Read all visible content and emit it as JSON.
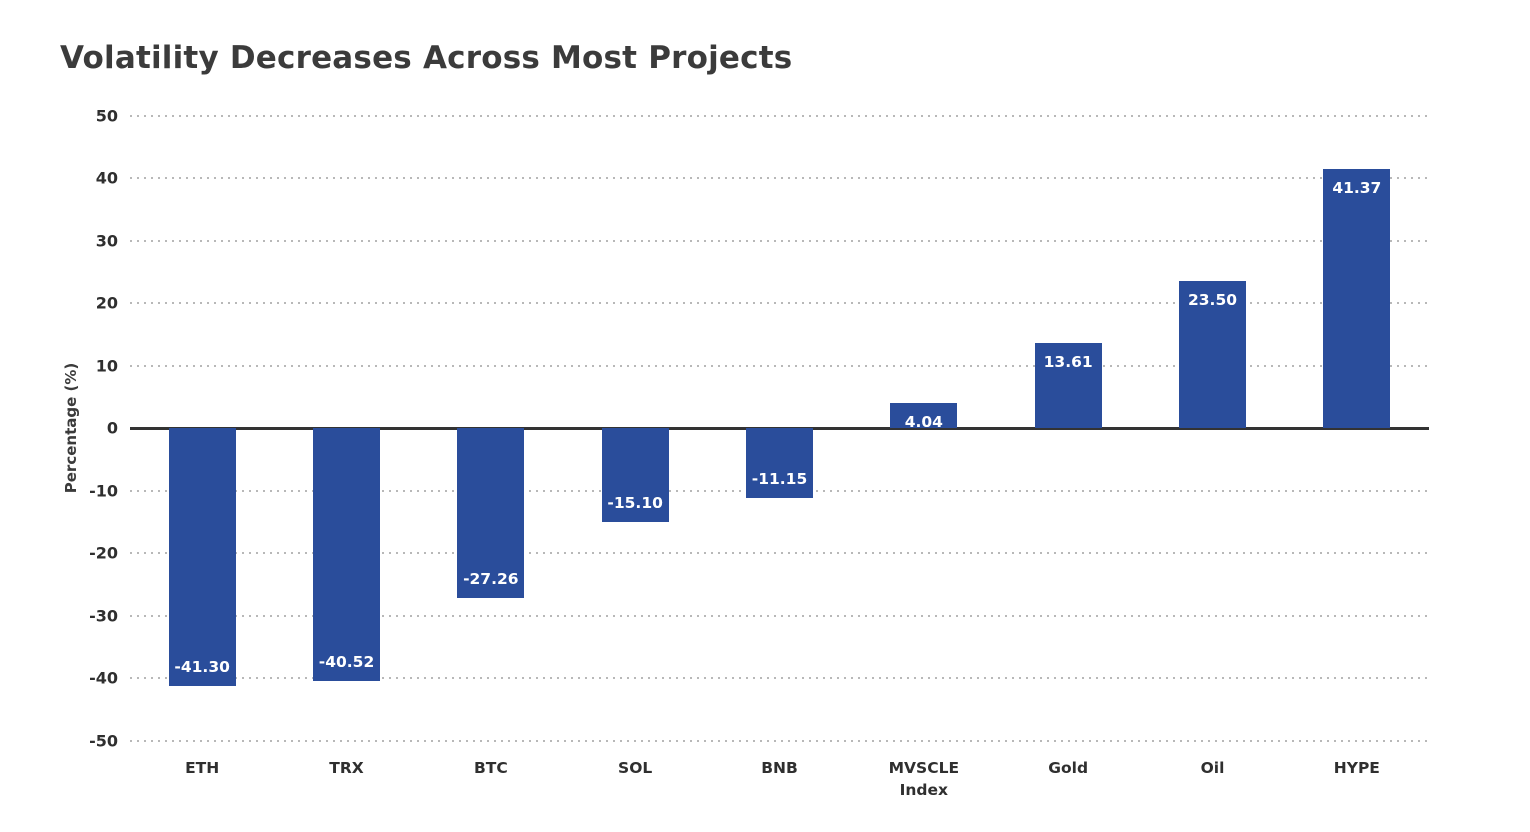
{
  "page": {
    "title": "Volatility Decreases Across Most Projects"
  },
  "chart_data": {
    "type": "bar",
    "title": "Volatility Decreases Across Most Projects",
    "subtitle": "",
    "categories": [
      "ETH",
      "TRX",
      "BTC",
      "SOL",
      "BNB",
      "MVSCLE Index",
      "Gold",
      "Oil",
      "HYPE"
    ],
    "values": [
      -41.3,
      -40.52,
      -27.26,
      -15.1,
      -11.15,
      4.04,
      13.61,
      23.5,
      41.37
    ],
    "value_labels": [
      "-41.30",
      "-40.52",
      "-27.26",
      "-15.10",
      "-11.15",
      "4.04",
      "13.61",
      "23.50",
      "41.37"
    ],
    "xlabel": "",
    "ylabel": "Percentage (%)",
    "ylim": [
      -50,
      50
    ],
    "yticks": [
      50,
      40,
      30,
      20,
      10,
      0,
      -10,
      -20,
      -30,
      -40,
      -50
    ],
    "grid": "horizontal-dotted",
    "legend_position": "none",
    "colors": {
      "bar": "#2A4D9B",
      "bar_label_text": "#ffffff",
      "zero_line": "#333333",
      "gridline": "#b8b8b8",
      "title_text": "#3b3b3b",
      "tick_text": "#2f2f2f",
      "background": "#ffffff"
    }
  }
}
